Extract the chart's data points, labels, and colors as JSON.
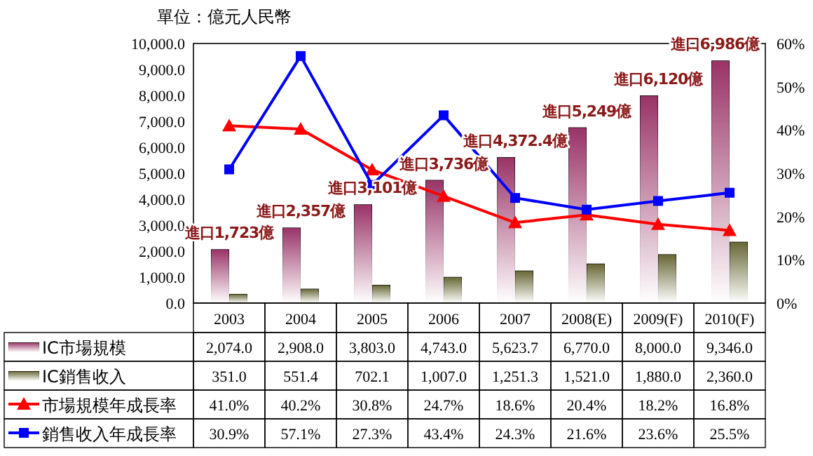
{
  "chart_data": {
    "type": "bar",
    "title": "單位：億元人民幣",
    "categories": [
      "2003",
      "2004",
      "2005",
      "2006",
      "2007",
      "2008(E)",
      "2009(F)",
      "2010(F)"
    ],
    "series": [
      {
        "name": "IC市場規模",
        "color": "#993366",
        "values": [
          2074.0,
          2908.0,
          3803.0,
          4743.0,
          5623.7,
          6770.0,
          8000.0,
          9346.0
        ],
        "value_labels": [
          "2,074.0",
          "2,908.0",
          "3,803.0",
          "4,743.0",
          "5,623.7",
          "6,770.0",
          "8,000.0",
          "9,346.0"
        ]
      },
      {
        "name": "IC銷售收入",
        "color": "#666633",
        "values": [
          351.0,
          551.4,
          702.1,
          1007.0,
          1251.3,
          1521.0,
          1880.0,
          2360.0
        ],
        "value_labels": [
          "351.0",
          "551.4",
          "702.1",
          "1,007.0",
          "1,251.3",
          "1,521.0",
          "1,880.0",
          "2,360.0"
        ]
      },
      {
        "name": "市場規模年成長率",
        "type": "line",
        "axis": "y2",
        "marker": "triangle",
        "color": "#ff0000",
        "values": [
          41.0,
          40.2,
          30.8,
          24.7,
          18.6,
          20.4,
          18.2,
          16.8
        ],
        "value_labels": [
          "41.0%",
          "40.2%",
          "30.8%",
          "24.7%",
          "18.6%",
          "20.4%",
          "18.2%",
          "16.8%"
        ]
      },
      {
        "name": "銷售收入年成長率",
        "type": "line",
        "axis": "y2",
        "marker": "square",
        "color": "#0000ff",
        "values": [
          30.9,
          57.1,
          27.3,
          43.4,
          24.3,
          21.6,
          23.6,
          25.5
        ],
        "value_labels": [
          "30.9%",
          "57.1%",
          "27.3%",
          "43.4%",
          "24.3%",
          "21.6%",
          "23.6%",
          "25.5%"
        ]
      }
    ],
    "ylim": [
      0,
      10000
    ],
    "yticks": [
      {
        "value": 0,
        "label": "0.0"
      },
      {
        "value": 1000,
        "label": "1,000.0"
      },
      {
        "value": 2000,
        "label": "2,000.0"
      },
      {
        "value": 3000,
        "label": "3,000.0"
      },
      {
        "value": 4000,
        "label": "4,000.0"
      },
      {
        "value": 5000,
        "label": "5,000.0"
      },
      {
        "value": 6000,
        "label": "6,000.0"
      },
      {
        "value": 7000,
        "label": "7,000.0"
      },
      {
        "value": 8000,
        "label": "8,000.0"
      },
      {
        "value": 9000,
        "label": "9,000.0"
      },
      {
        "value": 10000,
        "label": "10,000.0"
      }
    ],
    "y2lim": [
      0,
      60
    ],
    "y2ticks": [
      {
        "value": 0,
        "label": "0%"
      },
      {
        "value": 10,
        "label": "10%"
      },
      {
        "value": 20,
        "label": "20%"
      },
      {
        "value": 30,
        "label": "30%"
      },
      {
        "value": 40,
        "label": "40%"
      },
      {
        "value": 50,
        "label": "50%"
      },
      {
        "value": 60,
        "label": "60%"
      }
    ],
    "legend": "bottom",
    "annotations": [
      "進口1,723億",
      "進口2,357億",
      "進口3,101億",
      "進口3,736億",
      "進口4,372.4億",
      "進口5,249億",
      "進口6,120億",
      "進口6,986億"
    ]
  }
}
